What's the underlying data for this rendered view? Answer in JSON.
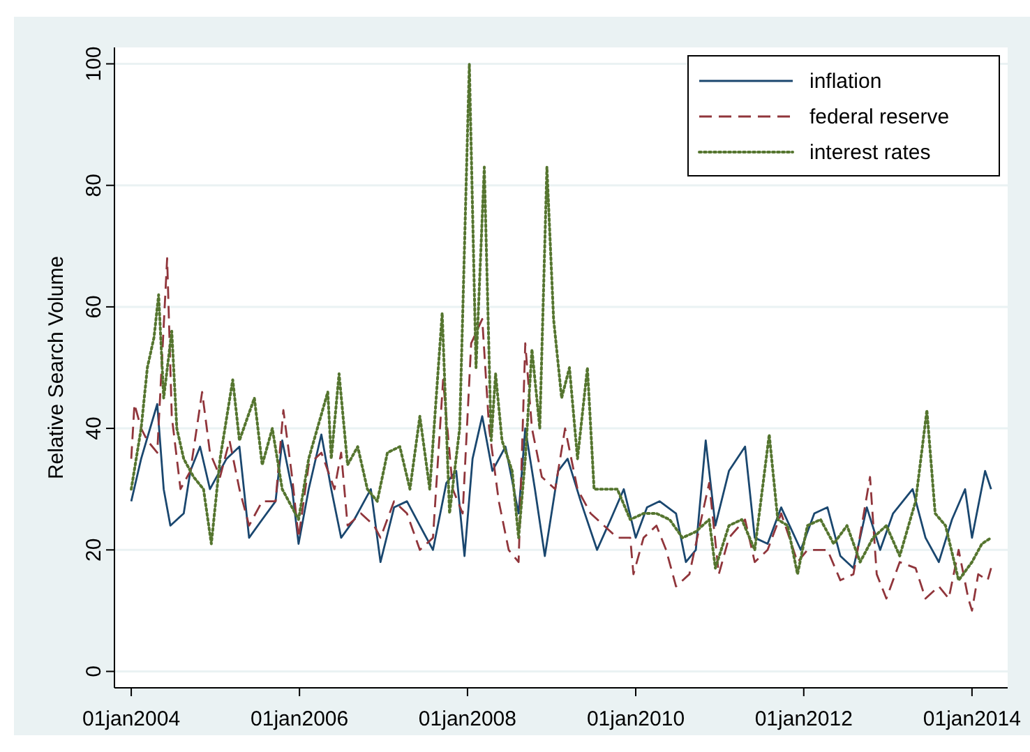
{
  "chart_data": {
    "type": "line",
    "ylabel": "Relative Search Volume",
    "xlim": [
      "2003-10-20",
      "2014-06-05"
    ],
    "xticks": [
      {
        "value": "2004-01-01",
        "label": "01jan2004"
      },
      {
        "value": "2006-01-01",
        "label": "01jan2006"
      },
      {
        "value": "2008-01-01",
        "label": "01jan2008"
      },
      {
        "value": "2010-01-01",
        "label": "01jan2010"
      },
      {
        "value": "2012-01-01",
        "label": "01jan2012"
      },
      {
        "value": "2014-01-01",
        "label": "01jan2014"
      }
    ],
    "ylim": [
      -2.7,
      102.7
    ],
    "yticks": [
      0,
      20,
      40,
      60,
      80,
      100
    ],
    "grid": "y",
    "legend": "top right",
    "series": [
      {
        "name": "inflation",
        "color": "#1a476f",
        "line_style": "solid",
        "x": [
          "2004-01-01",
          "2004-02-13",
          "2004-04-23",
          "2004-05-21",
          "2004-06-19",
          "2004-08-16",
          "2004-09-14",
          "2004-10-26",
          "2004-12-08",
          "2005-02-18",
          "2005-04-15",
          "2005-05-27",
          "2005-07-23",
          "2005-09-19",
          "2005-10-18",
          "2005-11-30",
          "2005-12-28",
          "2006-02-10",
          "2006-04-06",
          "2006-05-19",
          "2006-07-01",
          "2006-08-27",
          "2006-11-07",
          "2006-12-19",
          "2007-02-16",
          "2007-04-13",
          "2007-06-08",
          "2007-08-04",
          "2007-10-01",
          "2007-11-13",
          "2007-12-19",
          "2008-01-23",
          "2008-03-05",
          "2008-04-18",
          "2008-06-14",
          "2008-08-10",
          "2008-09-08",
          "2008-10-20",
          "2008-12-02",
          "2009-01-29",
          "2009-03-11",
          "2009-05-07",
          "2009-07-17",
          "2009-09-14",
          "2009-11-10",
          "2010-01-01",
          "2010-02-19",
          "2010-04-15",
          "2010-06-25",
          "2010-08-07",
          "2010-09-19",
          "2010-11-01",
          "2010-12-13",
          "2011-02-10",
          "2011-04-21",
          "2011-06-02",
          "2011-07-28",
          "2011-09-25",
          "2011-12-19",
          "2012-02-16",
          "2012-04-13",
          "2012-06-08",
          "2012-08-04",
          "2012-10-01",
          "2012-11-28",
          "2013-01-23",
          "2013-04-18",
          "2013-06-13",
          "2013-08-10",
          "2013-10-06",
          "2013-12-02",
          "2014-01-01",
          "2014-02-27",
          "2014-03-25"
        ],
        "values": [
          28,
          35,
          44,
          30,
          24,
          26,
          33,
          37,
          30,
          35,
          37,
          22,
          25,
          28,
          38,
          30,
          21,
          30,
          39,
          30,
          22,
          25,
          30,
          18,
          27,
          28,
          24,
          20,
          31,
          33,
          19,
          35,
          42,
          33,
          37,
          26,
          40,
          30,
          19,
          33,
          35,
          28,
          20,
          25,
          30,
          22,
          27,
          28,
          26,
          18,
          20,
          38,
          24,
          33,
          37,
          22,
          21,
          27,
          20,
          26,
          27,
          19,
          17,
          27,
          20,
          26,
          30,
          22,
          18,
          25,
          30,
          22,
          33,
          30
        ]
      },
      {
        "name": "federal reserve",
        "color": "#90353b",
        "line_style": "dashed",
        "x": [
          "2004-01-01",
          "2004-01-15",
          "2004-02-13",
          "2004-03-11",
          "2004-04-23",
          "2004-06-05",
          "2004-06-25",
          "2004-08-02",
          "2004-09-14",
          "2004-11-04",
          "2004-12-08",
          "2005-01-21",
          "2005-03-03",
          "2005-04-15",
          "2005-05-27",
          "2005-07-23",
          "2005-09-19",
          "2005-10-23",
          "2005-11-30",
          "2005-12-28",
          "2006-02-10",
          "2006-04-06",
          "2006-06-02",
          "2006-07-01",
          "2006-07-29",
          "2006-09-25",
          "2006-11-21",
          "2006-12-19",
          "2007-02-16",
          "2007-04-13",
          "2007-06-08",
          "2007-08-04",
          "2007-09-17",
          "2007-10-29",
          "2007-12-11",
          "2008-01-17",
          "2008-03-05",
          "2008-04-04",
          "2008-05-16",
          "2008-06-28",
          "2008-08-10",
          "2008-09-08",
          "2008-10-07",
          "2008-11-19",
          "2009-01-16",
          "2009-02-28",
          "2009-04-23",
          "2009-06-19",
          "2009-08-16",
          "2009-10-13",
          "2009-12-08",
          "2009-12-22",
          "2010-02-04",
          "2010-04-01",
          "2010-05-13",
          "2010-06-25",
          "2010-08-22",
          "2010-10-18",
          "2010-11-16",
          "2010-12-28",
          "2011-02-10",
          "2011-04-21",
          "2011-06-02",
          "2011-07-28",
          "2011-09-25",
          "2011-12-05",
          "2012-01-17",
          "2012-04-13",
          "2012-06-08",
          "2012-08-04",
          "2012-10-15",
          "2012-11-13",
          "2012-12-25",
          "2013-02-21",
          "2013-05-01",
          "2013-06-13",
          "2013-08-10",
          "2013-09-22",
          "2013-11-04",
          "2013-12-16",
          "2014-01-01",
          "2014-01-28",
          "2014-03-10",
          "2014-03-25"
        ],
        "values": [
          35,
          44,
          40,
          38,
          36,
          68,
          42,
          30,
          33,
          46,
          36,
          32,
          38,
          30,
          24,
          28,
          28,
          43,
          32,
          22,
          34,
          36,
          30,
          36,
          24,
          26,
          24,
          22,
          28,
          26,
          20,
          22,
          48,
          30,
          26,
          54,
          58,
          40,
          28,
          20,
          18,
          54,
          40,
          32,
          30,
          40,
          30,
          26,
          24,
          22,
          22,
          16,
          22,
          24,
          20,
          14,
          16,
          26,
          31,
          16,
          22,
          25,
          18,
          20,
          26,
          18,
          20,
          20,
          15,
          16,
          32,
          16,
          12,
          18,
          17,
          12,
          14,
          12,
          20,
          12,
          10,
          16,
          15,
          17
        ]
      },
      {
        "name": "interest rates",
        "color": "#55752f",
        "line_style": "dotted",
        "x": [
          "2004-01-01",
          "2004-02-13",
          "2004-03-11",
          "2004-04-09",
          "2004-04-29",
          "2004-05-21",
          "2004-06-25",
          "2004-07-17",
          "2004-08-16",
          "2004-09-28",
          "2004-11-10",
          "2004-12-14",
          "2005-01-21",
          "2005-03-17",
          "2005-04-15",
          "2005-06-19",
          "2005-07-23",
          "2005-09-05",
          "2005-10-18",
          "2005-12-28",
          "2006-02-10",
          "2006-05-04",
          "2006-05-19",
          "2006-06-22",
          "2006-07-29",
          "2006-09-11",
          "2006-10-23",
          "2006-12-05",
          "2007-01-18",
          "2007-03-13",
          "2007-04-26",
          "2007-06-08",
          "2007-07-21",
          "2007-09-13",
          "2007-10-15",
          "2007-11-28",
          "2008-01-09",
          "2008-02-07",
          "2008-03-14",
          "2008-04-13",
          "2008-05-02",
          "2008-05-30",
          "2008-07-13",
          "2008-08-10",
          "2008-09-08",
          "2008-10-07",
          "2008-11-10",
          "2008-12-11",
          "2009-01-09",
          "2009-02-13",
          "2009-03-19",
          "2009-04-23",
          "2009-06-05",
          "2009-07-04",
          "2009-08-16",
          "2009-10-13",
          "2009-12-08",
          "2010-02-04",
          "2010-04-01",
          "2010-05-28",
          "2010-07-23",
          "2010-09-19",
          "2010-11-16",
          "2010-12-13",
          "2011-02-10",
          "2011-04-07",
          "2011-06-02",
          "2011-08-04",
          "2011-09-10",
          "2011-10-23",
          "2011-12-05",
          "2012-01-17",
          "2012-03-14",
          "2012-05-10",
          "2012-07-07",
          "2012-09-02",
          "2012-10-28",
          "2012-12-25",
          "2013-02-21",
          "2013-05-01",
          "2013-06-19",
          "2013-07-25",
          "2013-09-08",
          "2013-11-04",
          "2014-01-01",
          "2014-02-13",
          "2014-03-25"
        ],
        "values": [
          30,
          40,
          50,
          55,
          62,
          45,
          56,
          40,
          35,
          32,
          30,
          21,
          35,
          48,
          38,
          45,
          34,
          40,
          30,
          25,
          35,
          46,
          35,
          49,
          34,
          37,
          30,
          28,
          36,
          37,
          30,
          42,
          30,
          59,
          26,
          40,
          100,
          50,
          83,
          38,
          49,
          38,
          33,
          22,
          35,
          53,
          40,
          83,
          58,
          45,
          50,
          35,
          50,
          30,
          30,
          30,
          25,
          26,
          26,
          25,
          22,
          23,
          25,
          17,
          24,
          25,
          20,
          39,
          25,
          24,
          16,
          24,
          25,
          21,
          24,
          18,
          22,
          24,
          19,
          28,
          43,
          26,
          24,
          15,
          18,
          21,
          22
        ]
      }
    ]
  }
}
